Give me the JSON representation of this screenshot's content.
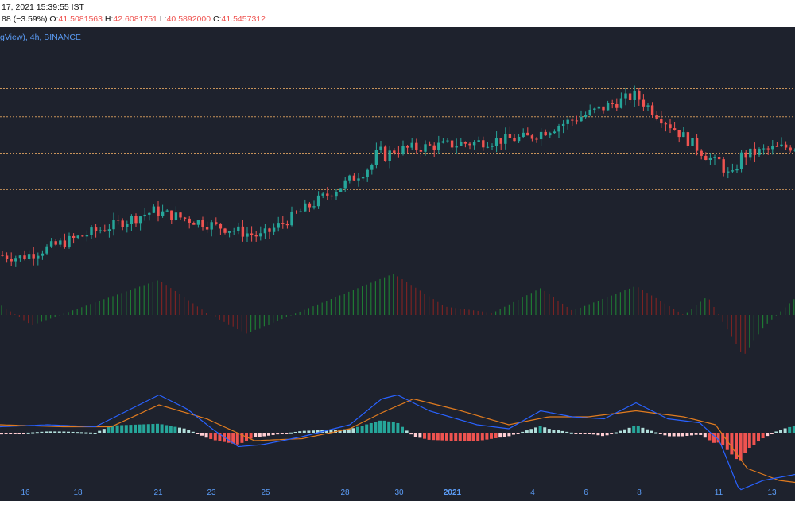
{
  "header": {
    "datetime": "17, 2021 15:39:55 IST",
    "change": "88 (−3.59%)",
    "o_label": "O:",
    "o_value": "41.5081563",
    "h_label": "H:",
    "h_value": "42.6081751",
    "l_label": "L:",
    "l_value": "40.5892000",
    "c_label": "C:",
    "c_value": "41.5457312"
  },
  "legend": {
    "text": "gView), 4h, BINANCE"
  },
  "colors": {
    "background": "#1e222d",
    "up": "#26a69a",
    "down": "#ef5350",
    "level_line": "#c8935a",
    "macd_line": "#2962ff",
    "signal_line": "#e07b1f",
    "tick_label": "#5b9cf6",
    "osc_up": "#1f7a33",
    "osc_down": "#7a2323"
  },
  "chart_data": [
    {
      "type": "candlestick",
      "x_ticks": [
        "16",
        "18",
        "21",
        "23",
        "25",
        "28",
        "30",
        "2021",
        "4",
        "6",
        "8",
        "11",
        "13"
      ],
      "price_levels": [
        31.2,
        35.6,
        40.0,
        43.4
      ],
      "ylim": [
        22,
        47
      ],
      "key_values": [
        {
          "tick": "16",
          "price": 23.0
        },
        {
          "tick": "21",
          "price": 28.6
        },
        {
          "tick": "25",
          "price": 25.5
        },
        {
          "tick": "28",
          "price": 31.6
        },
        {
          "tick": "30",
          "price": 36.0
        },
        {
          "tick": "4",
          "price": 37.5
        },
        {
          "tick": "8",
          "price": 42.6
        },
        {
          "tick": "11",
          "price": 34.5
        },
        {
          "tick": "13",
          "price": 36.0
        }
      ]
    },
    {
      "type": "histogram",
      "name": "oscillator",
      "ylim": [
        -1,
        1
      ]
    },
    {
      "type": "line",
      "name": "MACD",
      "ylim": [
        -1,
        1
      ]
    }
  ]
}
